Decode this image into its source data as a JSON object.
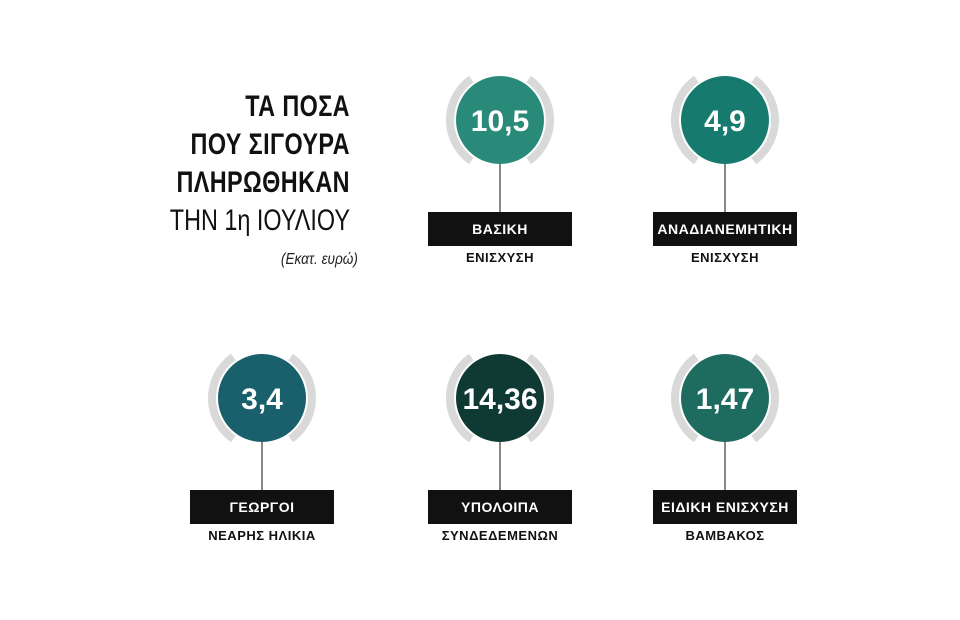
{
  "title": {
    "line1": "ΤΑ ΠΟΣΑ",
    "line2": "ΠΟΥ ΣΙΓΟΥΡΑ",
    "line3": "ΠΛΗΡΩΘΗΚΑΝ",
    "line4": "ΤΗΝ 1η ΙΟΥΛΙΟΥ",
    "unit": "(Εκατ. ευρώ)"
  },
  "chart_data": {
    "type": "bubble-values",
    "title": "ΤΑ ΠΟΣΑ ΠΟΥ ΣΙΓΟΥΡΑ ΠΛΗΡΩΘΗΚΑΝ ΤΗΝ 1η ΙΟΥΛΙΟΥ",
    "unit": "(Εκατ. ευρώ)",
    "categories": [
      {
        "label": "ΒΑΣΙΚΗ",
        "sublabel": "ΕΝΙΣΧΥΣΗ",
        "display": "10,5",
        "value": 10.5,
        "color": "#2a8a7a"
      },
      {
        "label": "ΑΝΑΔΙΑΝΕΜΗΤΙΚΗ",
        "sublabel": "ΕΝΙΣΧΥΣΗ",
        "display": "4,9",
        "value": 4.9,
        "color": "#167a6e"
      },
      {
        "label": "ΓΕΩΡΓΟΙ",
        "sublabel": "ΝΕΑΡΗΣ ΗΛΙΚΙΑ",
        "display": "3,4",
        "value": 3.4,
        "color": "#1a5f6c"
      },
      {
        "label": "ΥΠΟΛΟΙΠΑ",
        "sublabel": "ΣΥΝΔΕΔΕΜΕΝΩΝ",
        "display": "14,36",
        "value": 14.36,
        "color": "#0f3a33"
      },
      {
        "label": "ΕΙΔΙΚΗ ΕΝΙΣΧΥΣΗ",
        "sublabel": "ΒΑΜΒΑΚΟΣ",
        "display": "1,47",
        "value": 1.47,
        "color": "#1e6c5f"
      }
    ]
  },
  "colors": {
    "ring": "#d9d9d9",
    "label_bar": "#111111",
    "value_text": "#ffffff"
  }
}
